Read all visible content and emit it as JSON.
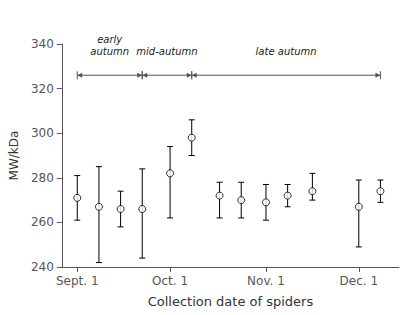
{
  "chart_data": {
    "type": "scatter",
    "xlabel": "Collection date of spiders",
    "ylabel": "MW/kDa",
    "x": [
      0,
      7,
      14,
      21,
      30,
      37,
      46,
      53,
      61,
      68,
      76,
      91,
      98
    ],
    "values": [
      271,
      267,
      266,
      266,
      282,
      298,
      272,
      270,
      269,
      272,
      274,
      267,
      274
    ],
    "error_upper": [
      10,
      18,
      8,
      18,
      12,
      8,
      6,
      8,
      8,
      5,
      8,
      12,
      5
    ],
    "error_lower": [
      10,
      25,
      8,
      22,
      20,
      8,
      10,
      8,
      8,
      5,
      4,
      18,
      5
    ],
    "color": "#000000",
    "marker": "circle",
    "line_style": "none",
    "xlim": [
      -5,
      104
    ],
    "xticks": [
      {
        "value": 0,
        "label": "Sept. 1"
      },
      {
        "value": 30,
        "label": "Oct. 1"
      },
      {
        "value": 61,
        "label": "Nov. 1"
      },
      {
        "value": 91,
        "label": "Dec. 1"
      }
    ],
    "ylim": [
      240,
      340
    ],
    "yticks": [
      240,
      260,
      280,
      300,
      320,
      340
    ],
    "grid": false,
    "annotations": [
      {
        "text": "early\nautumn",
        "x": 10.5,
        "y": 334,
        "bracket": [
          0,
          21
        ],
        "bracket_y": 326,
        "color": "#555555"
      },
      {
        "text": "mid-autumn",
        "x": 29,
        "y": 334,
        "bracket": [
          21,
          37
        ],
        "bracket_y": 326,
        "color": "#555555"
      },
      {
        "text": "late autumn",
        "x": 67.5,
        "y": 334,
        "bracket": [
          37,
          98
        ],
        "bracket_y": 326,
        "color": "#555555"
      }
    ]
  }
}
